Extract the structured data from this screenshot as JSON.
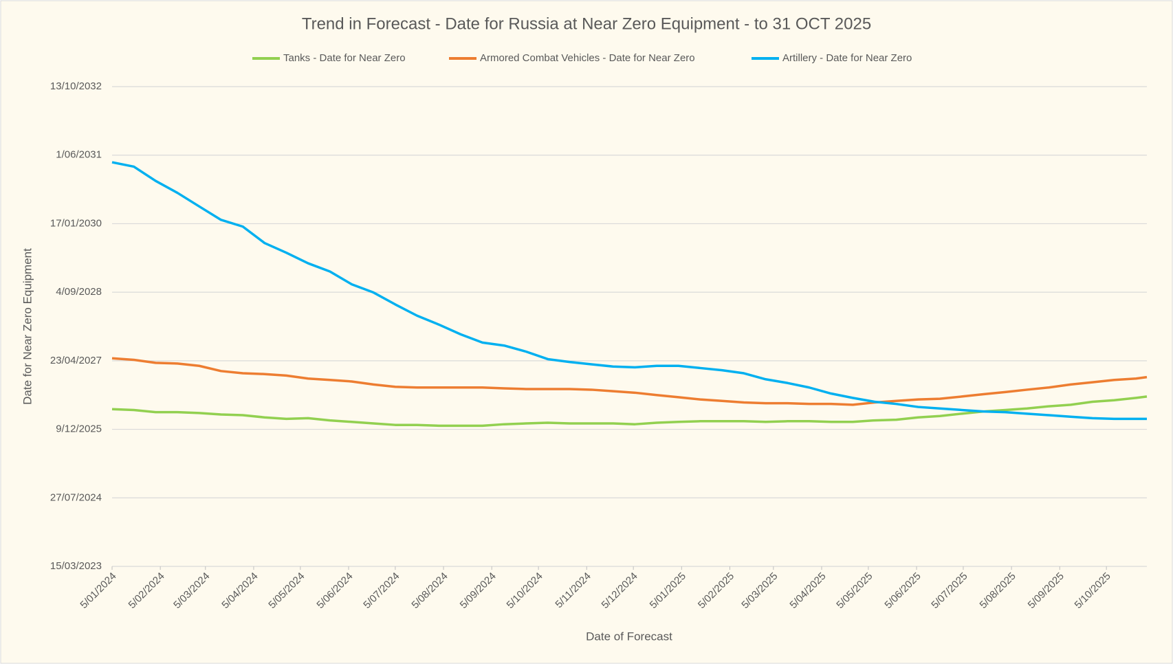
{
  "chart_data": {
    "type": "line",
    "title": "Trend in Forecast - Date for Russia at Near Zero Equipment - to 31 OCT 2025",
    "x_label": "Date of Forecast",
    "y_label": "Date for Near Zero Equipment",
    "x": [
      "2024-01-05",
      "2024-01-19",
      "2024-02-02",
      "2024-02-16",
      "2024-03-01",
      "2024-03-15",
      "2024-03-29",
      "2024-04-12",
      "2024-04-26",
      "2024-05-10",
      "2024-05-24",
      "2024-06-07",
      "2024-06-21",
      "2024-07-05",
      "2024-07-19",
      "2024-08-02",
      "2024-08-16",
      "2024-08-30",
      "2024-09-13",
      "2024-09-27",
      "2024-10-11",
      "2024-10-25",
      "2024-11-08",
      "2024-11-22",
      "2024-12-06",
      "2024-12-20",
      "2025-01-03",
      "2025-01-17",
      "2025-01-31",
      "2025-02-14",
      "2025-02-28",
      "2025-03-14",
      "2025-03-28",
      "2025-04-11",
      "2025-04-25",
      "2025-05-09",
      "2025-05-23",
      "2025-06-06",
      "2025-06-20",
      "2025-07-04",
      "2025-07-18",
      "2025-08-01",
      "2025-08-15",
      "2025-08-29",
      "2025-09-12",
      "2025-09-26",
      "2025-10-10",
      "2025-10-24",
      "2025-10-31"
    ],
    "xlim": [
      "2024-01-05",
      "2025-10-31"
    ],
    "xticks": [
      {
        "value": "2024-01-05",
        "label": "5/01/2024"
      },
      {
        "value": "2024-02-05",
        "label": "5/02/2024"
      },
      {
        "value": "2024-03-05",
        "label": "5/03/2024"
      },
      {
        "value": "2024-04-05",
        "label": "5/04/2024"
      },
      {
        "value": "2024-05-05",
        "label": "5/05/2024"
      },
      {
        "value": "2024-06-05",
        "label": "5/06/2024"
      },
      {
        "value": "2024-07-05",
        "label": "5/07/2024"
      },
      {
        "value": "2024-08-05",
        "label": "5/08/2024"
      },
      {
        "value": "2024-09-05",
        "label": "5/09/2024"
      },
      {
        "value": "2024-10-05",
        "label": "5/10/2024"
      },
      {
        "value": "2024-11-05",
        "label": "5/11/2024"
      },
      {
        "value": "2024-12-05",
        "label": "5/12/2024"
      },
      {
        "value": "2025-01-05",
        "label": "5/01/2025"
      },
      {
        "value": "2025-02-05",
        "label": "5/02/2025"
      },
      {
        "value": "2025-03-05",
        "label": "5/03/2025"
      },
      {
        "value": "2025-04-05",
        "label": "5/04/2025"
      },
      {
        "value": "2025-05-05",
        "label": "5/05/2025"
      },
      {
        "value": "2025-06-05",
        "label": "5/06/2025"
      },
      {
        "value": "2025-07-05",
        "label": "5/07/2025"
      },
      {
        "value": "2025-08-05",
        "label": "5/08/2025"
      },
      {
        "value": "2025-09-05",
        "label": "5/09/2025"
      },
      {
        "value": "2025-10-05",
        "label": "5/10/2025"
      }
    ],
    "ylim": [
      45000,
      48500
    ],
    "yticks": [
      {
        "value": 45000,
        "label": "15/03/2023"
      },
      {
        "value": 45500,
        "label": "27/07/2024"
      },
      {
        "value": 46000,
        "label": "9/12/2025"
      },
      {
        "value": 46500,
        "label": "23/04/2027"
      },
      {
        "value": 47000,
        "label": "4/09/2028"
      },
      {
        "value": 47500,
        "label": "17/01/2030"
      },
      {
        "value": 48000,
        "label": "1/06/2031"
      },
      {
        "value": 48500,
        "label": "13/10/2032"
      }
    ],
    "grid": true,
    "legend_position": "top",
    "series": [
      {
        "name": "Tanks - Date for Near Zero",
        "color": "#92d050",
        "values": [
          46147,
          46141,
          46125,
          46125,
          46119,
          46108,
          46103,
          46087,
          46076,
          46081,
          46065,
          46054,
          46043,
          46032,
          46032,
          46026,
          46026,
          46026,
          46037,
          46043,
          46048,
          46043,
          46043,
          46043,
          46037,
          46048,
          46054,
          46059,
          46059,
          46059,
          46054,
          46059,
          46059,
          46054,
          46054,
          46065,
          46070,
          46087,
          46097,
          46114,
          46130,
          46141,
          46152,
          46168,
          46179,
          46201,
          46212,
          46229,
          46239
        ]
      },
      {
        "name": "Armored Combat Vehicles - Date for Near Zero",
        "color": "#ed7d31",
        "values": [
          46518,
          46507,
          46485,
          46480,
          46463,
          46425,
          46409,
          46403,
          46392,
          46370,
          46360,
          46349,
          46327,
          46310,
          46305,
          46305,
          46305,
          46305,
          46299,
          46294,
          46294,
          46294,
          46289,
          46278,
          46267,
          46250,
          46234,
          46218,
          46207,
          46196,
          46190,
          46190,
          46185,
          46185,
          46179,
          46196,
          46207,
          46218,
          46223,
          46239,
          46256,
          46272,
          46289,
          46305,
          46327,
          46343,
          46360,
          46370,
          46381
        ]
      },
      {
        "name": "Artillery - Date for Near Zero",
        "color": "#00b0f0",
        "values": [
          47948,
          47916,
          47812,
          47725,
          47626,
          47528,
          47479,
          47359,
          47288,
          47211,
          47151,
          47058,
          46998,
          46911,
          46829,
          46764,
          46693,
          46633,
          46611,
          46567,
          46512,
          46491,
          46474,
          46458,
          46452,
          46463,
          46463,
          46447,
          46431,
          46409,
          46365,
          46338,
          46305,
          46261,
          46229,
          46201,
          46185,
          46163,
          46152,
          46141,
          46130,
          46125,
          46114,
          46103,
          46092,
          46081,
          46076,
          46076,
          46076
        ]
      }
    ]
  }
}
